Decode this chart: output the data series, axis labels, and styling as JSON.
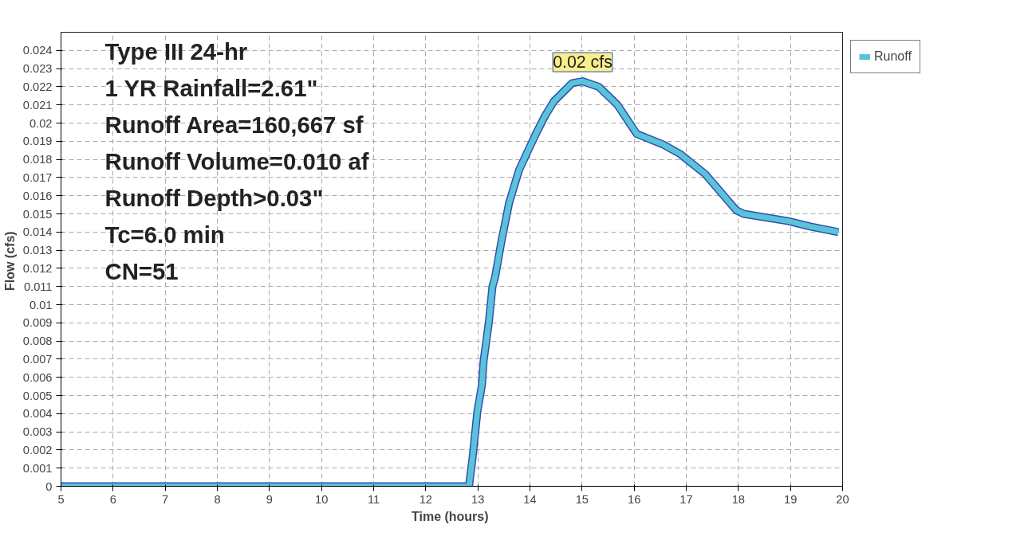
{
  "chart_data": {
    "type": "line",
    "xlabel": "Time  (hours)",
    "ylabel": "Flow  (cfs)",
    "x": [
      5,
      12.83,
      12.9,
      12.99,
      13.08,
      13.11,
      13.21,
      13.28,
      13.33,
      13.46,
      13.6,
      13.79,
      13.95,
      14.13,
      14.29,
      14.46,
      14.81,
      15.01,
      15.32,
      15.68,
      16.05,
      16.57,
      16.88,
      17.36,
      17.96,
      18.1,
      18.96,
      19.38,
      19.92
    ],
    "series": [
      {
        "name": "Runoff",
        "color": "#5bc3d9",
        "values": [
          0,
          0,
          0.0016,
          0.0041,
          0.0056,
          0.0069,
          0.009,
          0.011,
          0.0115,
          0.0136,
          0.0156,
          0.0174,
          0.0184,
          0.0195,
          0.0204,
          0.0212,
          0.0222,
          0.0223,
          0.022,
          0.021,
          0.0194,
          0.0188,
          0.0183,
          0.0172,
          0.0152,
          0.015,
          0.0146,
          0.0143,
          0.014
        ]
      }
    ],
    "xlim": [
      5,
      20
    ],
    "xticks": [
      5,
      6,
      7,
      8,
      9,
      10,
      11,
      12,
      13,
      14,
      15,
      16,
      17,
      18,
      19,
      20
    ],
    "ylim": [
      0,
      0.025
    ],
    "yticks": [
      0,
      0.001,
      0.002,
      0.003,
      0.004,
      0.005,
      0.006,
      0.007,
      0.008,
      0.009,
      0.01,
      0.011,
      0.012,
      0.013,
      0.014,
      0.015,
      0.016,
      0.017,
      0.018,
      0.019,
      0.02,
      0.021,
      0.022,
      0.023,
      0.024
    ],
    "grid": true,
    "legend": "top right",
    "marker": "none",
    "line_style": "solid",
    "annotations": [
      "Type III 24-hr",
      "1 YR Rainfall=2.61\"",
      "Runoff Area=160,667 sf",
      "Runoff Volume=0.010 af",
      "Runoff Depth>0.03\"",
      "Tc=6.0 min",
      "CN=51",
      {
        "text": "0.02 cfs",
        "x": 15.01,
        "y": 0.0223
      }
    ]
  }
}
